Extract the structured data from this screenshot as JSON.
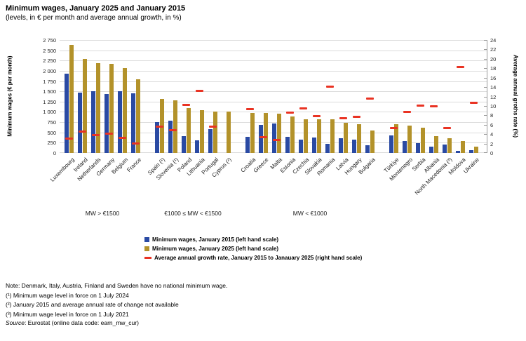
{
  "title": "Minimum wages, January 2025 and January 2015",
  "subtitle": "(levels, in € per month and average annual growth, in %)",
  "left_axis": {
    "title": "Minimum wages (€ per month)",
    "ticks": [
      "2 750",
      "2 500",
      "2 250",
      "2 000",
      "1 750",
      "1 500",
      "1 250",
      "1 000",
      "750",
      "500",
      "250",
      "0"
    ],
    "max": 2750
  },
  "right_axis": {
    "title": "Average annual groths rate (%)",
    "ticks": [
      "24",
      "22",
      "20",
      "18",
      "16",
      "14",
      "12",
      "10",
      "8",
      "6",
      "4",
      "2",
      "0"
    ],
    "max": 24
  },
  "legend": [
    {
      "marker": "square-2015",
      "label": "Minimum wages, January 2015 (left hand scale)"
    },
    {
      "marker": "square-2025",
      "label": "Minimum wages, January 2025 (left hand scale)"
    },
    {
      "marker": "dash-growth",
      "label": "Average annual growth rate, January 2015 to Janauary 2025 (right hand scale)"
    }
  ],
  "notes": [
    "Note: Denmark, Italy, Austria, Finland and Sweden have no national minimum wage.",
    "(¹) Minimum wage level in force on 1 July 2024",
    "(²) January 2015 and average annual rate of change not available",
    "(³) Minimum wage level in force on 1 July 2021"
  ],
  "source_label": "Source",
  "source_rest": ": Eurostat (online data code: earn_mw_cur)",
  "colors": {
    "bar_2015": "#2a4aa3",
    "bar_2025": "#b3922a",
    "growth": "#e93323",
    "grid": "#dcdcdc",
    "axis": "#999999"
  },
  "chart_data": {
    "type": "bar",
    "title": "Minimum wages, January 2025 and January 2015",
    "subtitle": "(levels, in € per month and average annual growth, in %)",
    "ylabel_left": "Minimum wages (€ per month)",
    "ylabel_right": "Average annual groths rate (%)",
    "ylim_left": [
      0,
      2750
    ],
    "ylim_right": [
      0,
      24
    ],
    "grid": "horizontal",
    "legend_position": "bottom",
    "series_names": [
      "Minimum wages, January 2015 (left hand scale)",
      "Minimum wages, January 2025 (left hand scale)",
      "Average annual growth rate, January 2015 to Janauary 2025 (right hand scale)"
    ],
    "groups": [
      {
        "label": "MW > €1500",
        "countries": [
          {
            "name": "Luxembourg",
            "mw_2015": 1923,
            "mw_2025": 2638,
            "growth": 3.2
          },
          {
            "name": "Ireland",
            "mw_2015": 1462,
            "mw_2025": 2282,
            "growth": 4.6
          },
          {
            "name": "Netherlands",
            "mw_2015": 1502,
            "mw_2025": 2193,
            "growth": 3.9
          },
          {
            "name": "Germany",
            "mw_2015": 1440,
            "mw_2025": 2161,
            "growth": 4.1
          },
          {
            "name": "Belgium",
            "mw_2015": 1502,
            "mw_2025": 2070,
            "growth": 3.3
          },
          {
            "name": "France",
            "mw_2015": 1458,
            "mw_2025": 1802,
            "growth": 2.1
          }
        ]
      },
      {
        "label": "€1000 ≤ MW < €1500",
        "countries": [
          {
            "name": "Spain (¹)",
            "mw_2015": 757,
            "mw_2025": 1323,
            "growth": 5.7
          },
          {
            "name": "Slovenia (¹)",
            "mw_2015": 791,
            "mw_2025": 1278,
            "growth": 4.9
          },
          {
            "name": "Poland",
            "mw_2015": 410,
            "mw_2025": 1091,
            "growth": 10.3
          },
          {
            "name": "Lithuania",
            "mw_2015": 300,
            "mw_2025": 1038,
            "growth": 13.2
          },
          {
            "name": "Portugal",
            "mw_2015": 589,
            "mw_2025": 1015,
            "growth": 5.6
          },
          {
            "name": "Cyprus (²)",
            "mw_2015": null,
            "mw_2025": 1000,
            "growth": null
          }
        ]
      },
      {
        "label": "MW < €1000",
        "countries": [
          {
            "name": "Croatia",
            "mw_2015": 396,
            "mw_2025": 970,
            "growth": 9.4
          },
          {
            "name": "Greece",
            "mw_2015": 684,
            "mw_2025": 968,
            "growth": 3.5
          },
          {
            "name": "Malta",
            "mw_2015": 720,
            "mw_2025": 961,
            "growth": 2.9
          },
          {
            "name": "Estonia",
            "mw_2015": 390,
            "mw_2025": 886,
            "growth": 8.6
          },
          {
            "name": "Czechia",
            "mw_2015": 332,
            "mw_2025": 826,
            "growth": 9.5
          },
          {
            "name": "Slovakia",
            "mw_2015": 380,
            "mw_2025": 816,
            "growth": 7.9
          },
          {
            "name": "Romania",
            "mw_2015": 218,
            "mw_2025": 814,
            "growth": 14.1
          },
          {
            "name": "Latvia",
            "mw_2015": 360,
            "mw_2025": 740,
            "growth": 7.5
          },
          {
            "name": "Hungary",
            "mw_2015": 333,
            "mw_2025": 707,
            "growth": 7.8
          },
          {
            "name": "Bulgaria",
            "mw_2015": 184,
            "mw_2025": 551,
            "growth": 11.6
          }
        ]
      },
      {
        "label": "",
        "countries": [
          {
            "name": "Türkiye",
            "mw_2015": 424,
            "mw_2025": 708,
            "growth": 5.3
          },
          {
            "name": "Montenegro",
            "mw_2015": 288,
            "mw_2025": 670,
            "growth": 8.8
          },
          {
            "name": "Serbia",
            "mw_2015": 235,
            "mw_2025": 619,
            "growth": 10.2
          },
          {
            "name": "Albania",
            "mw_2015": 157,
            "mw_2025": 408,
            "growth": 10.0
          },
          {
            "name": "North Macedonia (³)",
            "mw_2015": 213,
            "mw_2025": 360,
            "growth": 5.4
          },
          {
            "name": "Moldova",
            "mw_2015": 52,
            "mw_2025": 285,
            "growth": 18.3
          },
          {
            "name": "Ukraine",
            "mw_2015": 60,
            "mw_2025": 160,
            "growth": 10.8
          }
        ]
      }
    ]
  }
}
